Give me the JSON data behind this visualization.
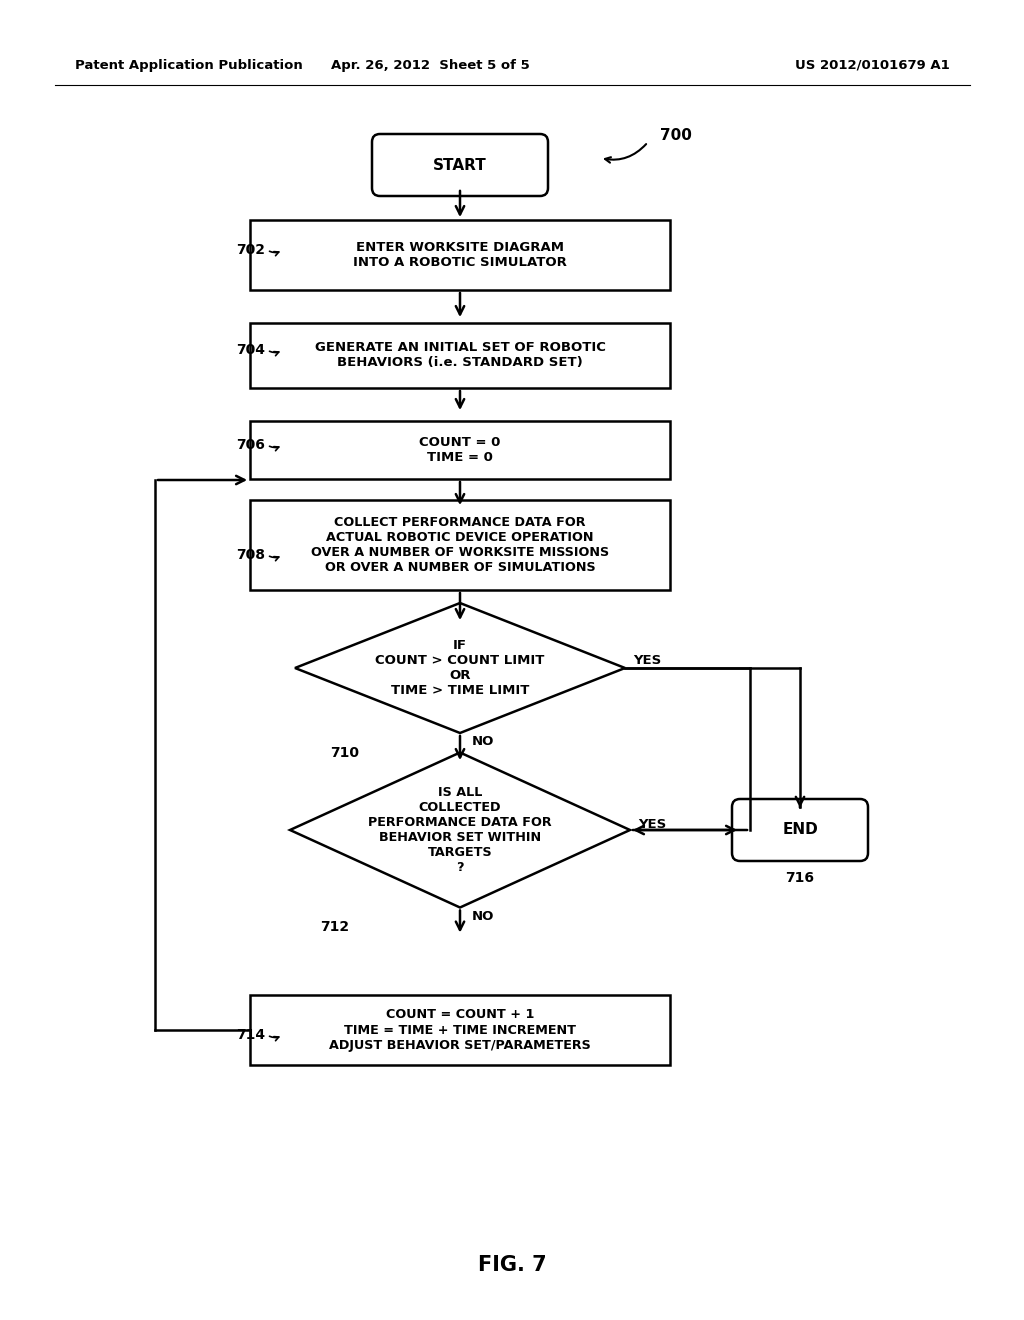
{
  "header_left": "Patent Application Publication",
  "header_center": "Apr. 26, 2012  Sheet 5 of 5",
  "header_right": "US 2012/0101679 A1",
  "figure_label": "FIG. 7",
  "diagram_label": "700",
  "background_color": "#ffffff",
  "line_color": "#000000",
  "start_text": "START",
  "end_text": "END",
  "box_702": "ENTER WORKSITE DIAGRAM\nINTO A ROBOTIC SIMULATOR",
  "box_704": "GENERATE AN INITIAL SET OF ROBOTIC\nBEHAVIORS (i.e. STANDARD SET)",
  "box_706": "COUNT = 0\nTIME = 0",
  "box_708": "COLLECT PERFORMANCE DATA FOR\nACTUAL ROBOTIC DEVICE OPERATION\nOVER A NUMBER OF WORKSITE MISSIONS\nOR OVER A NUMBER OF SIMULATIONS",
  "diamond_710": "IF\nCOUNT > COUNT LIMIT\nOR\nTIME > TIME LIMIT",
  "diamond_712": "IS ALL\nCOLLECTED\nPERFORMANCE DATA FOR\nBEHAVIOR SET WITHIN\nTARGETS\n?",
  "box_714": "COUNT = COUNT + 1\nTIME = TIME + TIME INCREMENT\nADJUST BEHAVIOR SET/PARAMETERS",
  "label_702": "702",
  "label_704": "704",
  "label_706": "706",
  "label_708": "708",
  "label_710": "710",
  "label_712": "712",
  "label_714": "714",
  "label_716": "716"
}
